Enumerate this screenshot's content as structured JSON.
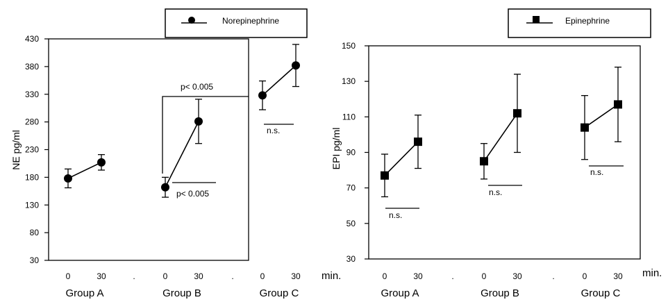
{
  "chart_data": [
    {
      "type": "scatter",
      "title": "",
      "ylabel": "NE pg/ml",
      "xlabel": "",
      "ylim": [
        30,
        430
      ],
      "yticks": [
        30,
        80,
        130,
        180,
        230,
        280,
        330,
        380,
        430
      ],
      "time_points": [
        "0",
        "30"
      ],
      "groups": [
        "Group A",
        "Group B",
        "Group C"
      ],
      "separator": ".",
      "unit_label": "",
      "legend": {
        "label": "Norepinephrine",
        "marker": "circle",
        "position": "top-right"
      },
      "series": [
        {
          "group": "Group A",
          "time_labels": [
            "0",
            "30"
          ],
          "values": [
            178,
            207
          ],
          "errors": [
            17,
            14
          ]
        },
        {
          "group": "Group B",
          "time_labels": [
            "0",
            "30"
          ],
          "values": [
            162,
            281
          ],
          "errors": [
            18,
            40
          ]
        },
        {
          "group": "Group C",
          "time_labels": [
            "0",
            "30"
          ],
          "values": [
            328,
            382
          ],
          "errors": [
            26,
            38
          ]
        }
      ],
      "annotations": [
        {
          "text": "p< 0.005",
          "kind": "bracket",
          "from": "Group B 0",
          "to": "Group C"
        },
        {
          "text": "p< 0.005",
          "kind": "underline",
          "group": "Group B"
        },
        {
          "text": "n.s.",
          "kind": "underline",
          "group": "Group C"
        }
      ]
    },
    {
      "type": "scatter",
      "title": "",
      "ylabel": "EPI pg/ml",
      "xlabel": "",
      "ylim": [
        30,
        150
      ],
      "yticks": [
        30,
        50,
        70,
        90,
        110,
        130,
        150
      ],
      "time_points": [
        "0",
        "30"
      ],
      "groups": [
        "Group A",
        "Group B",
        "Group C"
      ],
      "separator": ".",
      "unit_label": "min.",
      "legend": {
        "label": "Epinephrine",
        "marker": "square",
        "position": "top-right"
      },
      "series": [
        {
          "group": "Group A",
          "time_labels": [
            "0",
            "30"
          ],
          "values": [
            77,
            96
          ],
          "errors": [
            12,
            15
          ]
        },
        {
          "group": "Group B",
          "time_labels": [
            "0",
            "30"
          ],
          "values": [
            85,
            112
          ],
          "errors": [
            10,
            22
          ]
        },
        {
          "group": "Group C",
          "time_labels": [
            "0",
            "30"
          ],
          "values": [
            104,
            117
          ],
          "errors": [
            18,
            21
          ]
        }
      ],
      "annotations": [
        {
          "text": "n.s.",
          "kind": "underline",
          "group": "Group A"
        },
        {
          "text": "n.s.",
          "kind": "underline",
          "group": "Group B"
        },
        {
          "text": "n.s.",
          "kind": "underline",
          "group": "Group C"
        }
      ]
    }
  ],
  "between_label": "min."
}
